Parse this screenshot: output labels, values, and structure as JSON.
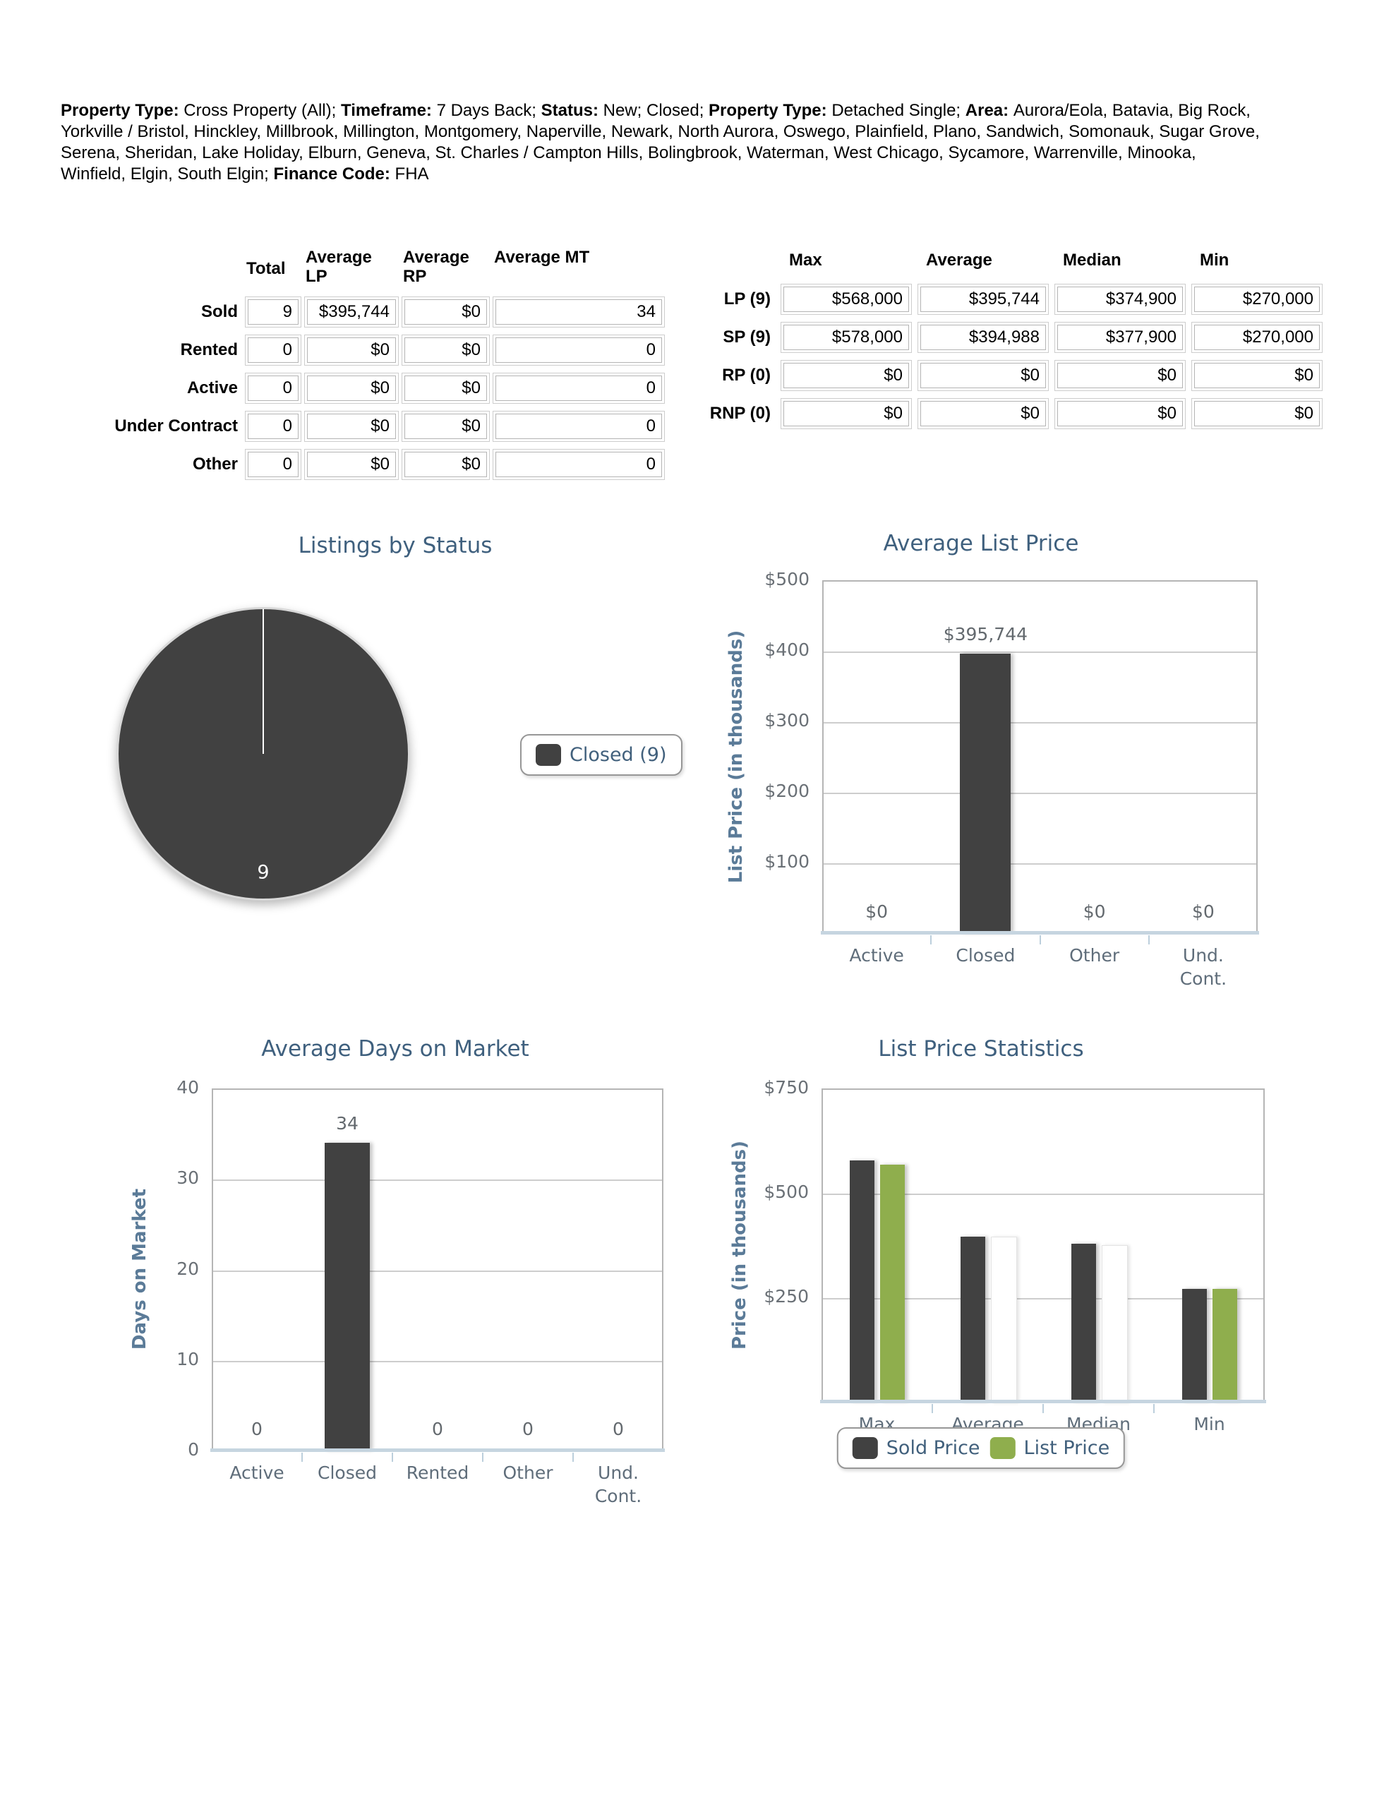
{
  "header": {
    "criteria": [
      {
        "label": "Property Type:",
        "value": "Cross Property (All); "
      },
      {
        "label": "Timeframe:",
        "value": "7 Days Back; "
      },
      {
        "label": "Status:",
        "value": "New; Closed; "
      },
      {
        "label": "Property Type:",
        "value": "Detached Single; "
      },
      {
        "label": "Area:",
        "value": "Aurora/Eola, Batavia, Big Rock, Yorkville / Bristol, Hinckley, Millbrook, Millington, Montgomery, Naperville, Newark, North Aurora, Oswego, Plainfield, Plano, Sandwich, Somonauk, Sugar Grove, Serena, Sheridan, Lake Holiday, Elburn, Geneva, St. Charles / Campton Hills, Bolingbrook, Waterman, West Chicago, Sycamore, Warrenville, Minooka, Winfield, Elgin, South Elgin; "
      },
      {
        "label": "Finance Code:",
        "value": "FHA"
      }
    ]
  },
  "summary_table": {
    "columns": [
      "Total",
      "Average LP",
      "Average RP",
      "Average MT"
    ],
    "rows": [
      {
        "label": "Sold",
        "values": [
          "9",
          "$395,744",
          "$0",
          "34"
        ]
      },
      {
        "label": "Rented",
        "values": [
          "0",
          "$0",
          "$0",
          "0"
        ]
      },
      {
        "label": "Active",
        "values": [
          "0",
          "$0",
          "$0",
          "0"
        ]
      },
      {
        "label": "Under Contract",
        "values": [
          "0",
          "$0",
          "$0",
          "0"
        ]
      },
      {
        "label": "Other",
        "values": [
          "0",
          "$0",
          "$0",
          "0"
        ]
      }
    ]
  },
  "price_table": {
    "columns": [
      "Max",
      "Average",
      "Median",
      "Min"
    ],
    "rows": [
      {
        "label": "LP (9)",
        "values": [
          "$568,000",
          "$395,744",
          "$374,900",
          "$270,000"
        ]
      },
      {
        "label": "SP (9)",
        "values": [
          "$578,000",
          "$394,988",
          "$377,900",
          "$270,000"
        ]
      },
      {
        "label": "RP (0)",
        "values": [
          "$0",
          "$0",
          "$0",
          "$0"
        ]
      },
      {
        "label": "RNP (0)",
        "values": [
          "$0",
          "$0",
          "$0",
          "$0"
        ]
      }
    ]
  },
  "chart_data": [
    {
      "id": "listings-by-status",
      "type": "pie",
      "title": "Listings by Status",
      "slices": [
        {
          "label": "Closed",
          "value": 9,
          "color": "#414141",
          "data_label": "9"
        }
      ],
      "legend": {
        "position": "right",
        "entries": [
          {
            "label": "Closed (9)",
            "color": "#414141"
          }
        ]
      }
    },
    {
      "id": "average-list-price",
      "type": "bar",
      "title": "Average List Price",
      "ylabel": "List Price (in thousands)",
      "ylim": [
        0,
        500
      ],
      "yticks": [
        {
          "value": 500,
          "label": "$500"
        },
        {
          "value": 400,
          "label": "$400"
        },
        {
          "value": 300,
          "label": "$300"
        },
        {
          "value": 200,
          "label": "$200"
        },
        {
          "value": 100,
          "label": "$100"
        }
      ],
      "categories": [
        "Active",
        "Closed",
        "Other",
        "Und.\nCont."
      ],
      "values": [
        0,
        395.744,
        0,
        0
      ],
      "value_labels": [
        "$0",
        "$395,744",
        "$0",
        "$0"
      ],
      "bar_color": "#414141",
      "grid": true,
      "legend_position": "none"
    },
    {
      "id": "average-days-on-market",
      "type": "bar",
      "title": "Average Days on Market",
      "ylabel": "Days on Market",
      "ylim": [
        0,
        40
      ],
      "yticks": [
        {
          "value": 40,
          "label": "40"
        },
        {
          "value": 30,
          "label": "30"
        },
        {
          "value": 20,
          "label": "20"
        },
        {
          "value": 10,
          "label": "10"
        },
        {
          "value": 0,
          "label": "0"
        }
      ],
      "categories": [
        "Active",
        "Closed",
        "Rented",
        "Other",
        "Und.\nCont."
      ],
      "values": [
        0,
        34,
        0,
        0,
        0
      ],
      "value_labels": [
        "0",
        "34",
        "0",
        "0",
        "0"
      ],
      "bar_color": "#414141",
      "grid": true,
      "legend_position": "none"
    },
    {
      "id": "list-price-statistics",
      "type": "grouped_bar",
      "title": "List Price Statistics",
      "ylabel": "Price (in thousands)",
      "ylim": [
        0,
        750
      ],
      "yticks": [
        {
          "value": 750,
          "label": "$750"
        },
        {
          "value": 500,
          "label": "$500"
        },
        {
          "value": 250,
          "label": "$250"
        }
      ],
      "categories": [
        "Max",
        "Average",
        "Median",
        "Min"
      ],
      "series": [
        {
          "name": "Sold Price",
          "color": "#414141",
          "values": [
            578,
            394.988,
            377.9,
            270
          ],
          "bar_rendered": [
            true,
            true,
            true,
            true
          ]
        },
        {
          "name": "List Price",
          "color": "#8fae4d",
          "values": [
            568,
            395.744,
            374.9,
            270
          ],
          "bar_rendered": [
            true,
            false,
            false,
            true
          ]
        }
      ],
      "grid": true,
      "legend": {
        "position": "bottom",
        "entries": [
          {
            "label": "Sold Price",
            "color": "#414141"
          },
          {
            "label": "List Price",
            "color": "#8fae4d"
          }
        ]
      }
    }
  ],
  "colors": {
    "title": "#3f607e",
    "axis_title": "#5b7b98",
    "tick_label": "#6a7076",
    "category_label": "#5f6d7a",
    "data_label": "#63696e",
    "legend_text": "#41607c",
    "bar_dark": "#414141",
    "bar_green": "#8fae4d",
    "gridline": "#cdcdcd",
    "plot_border": "#b5b5b5",
    "baseline": "#c6d5e0",
    "table_border": "#b4b4b4",
    "pie_label": "#ffffff"
  }
}
